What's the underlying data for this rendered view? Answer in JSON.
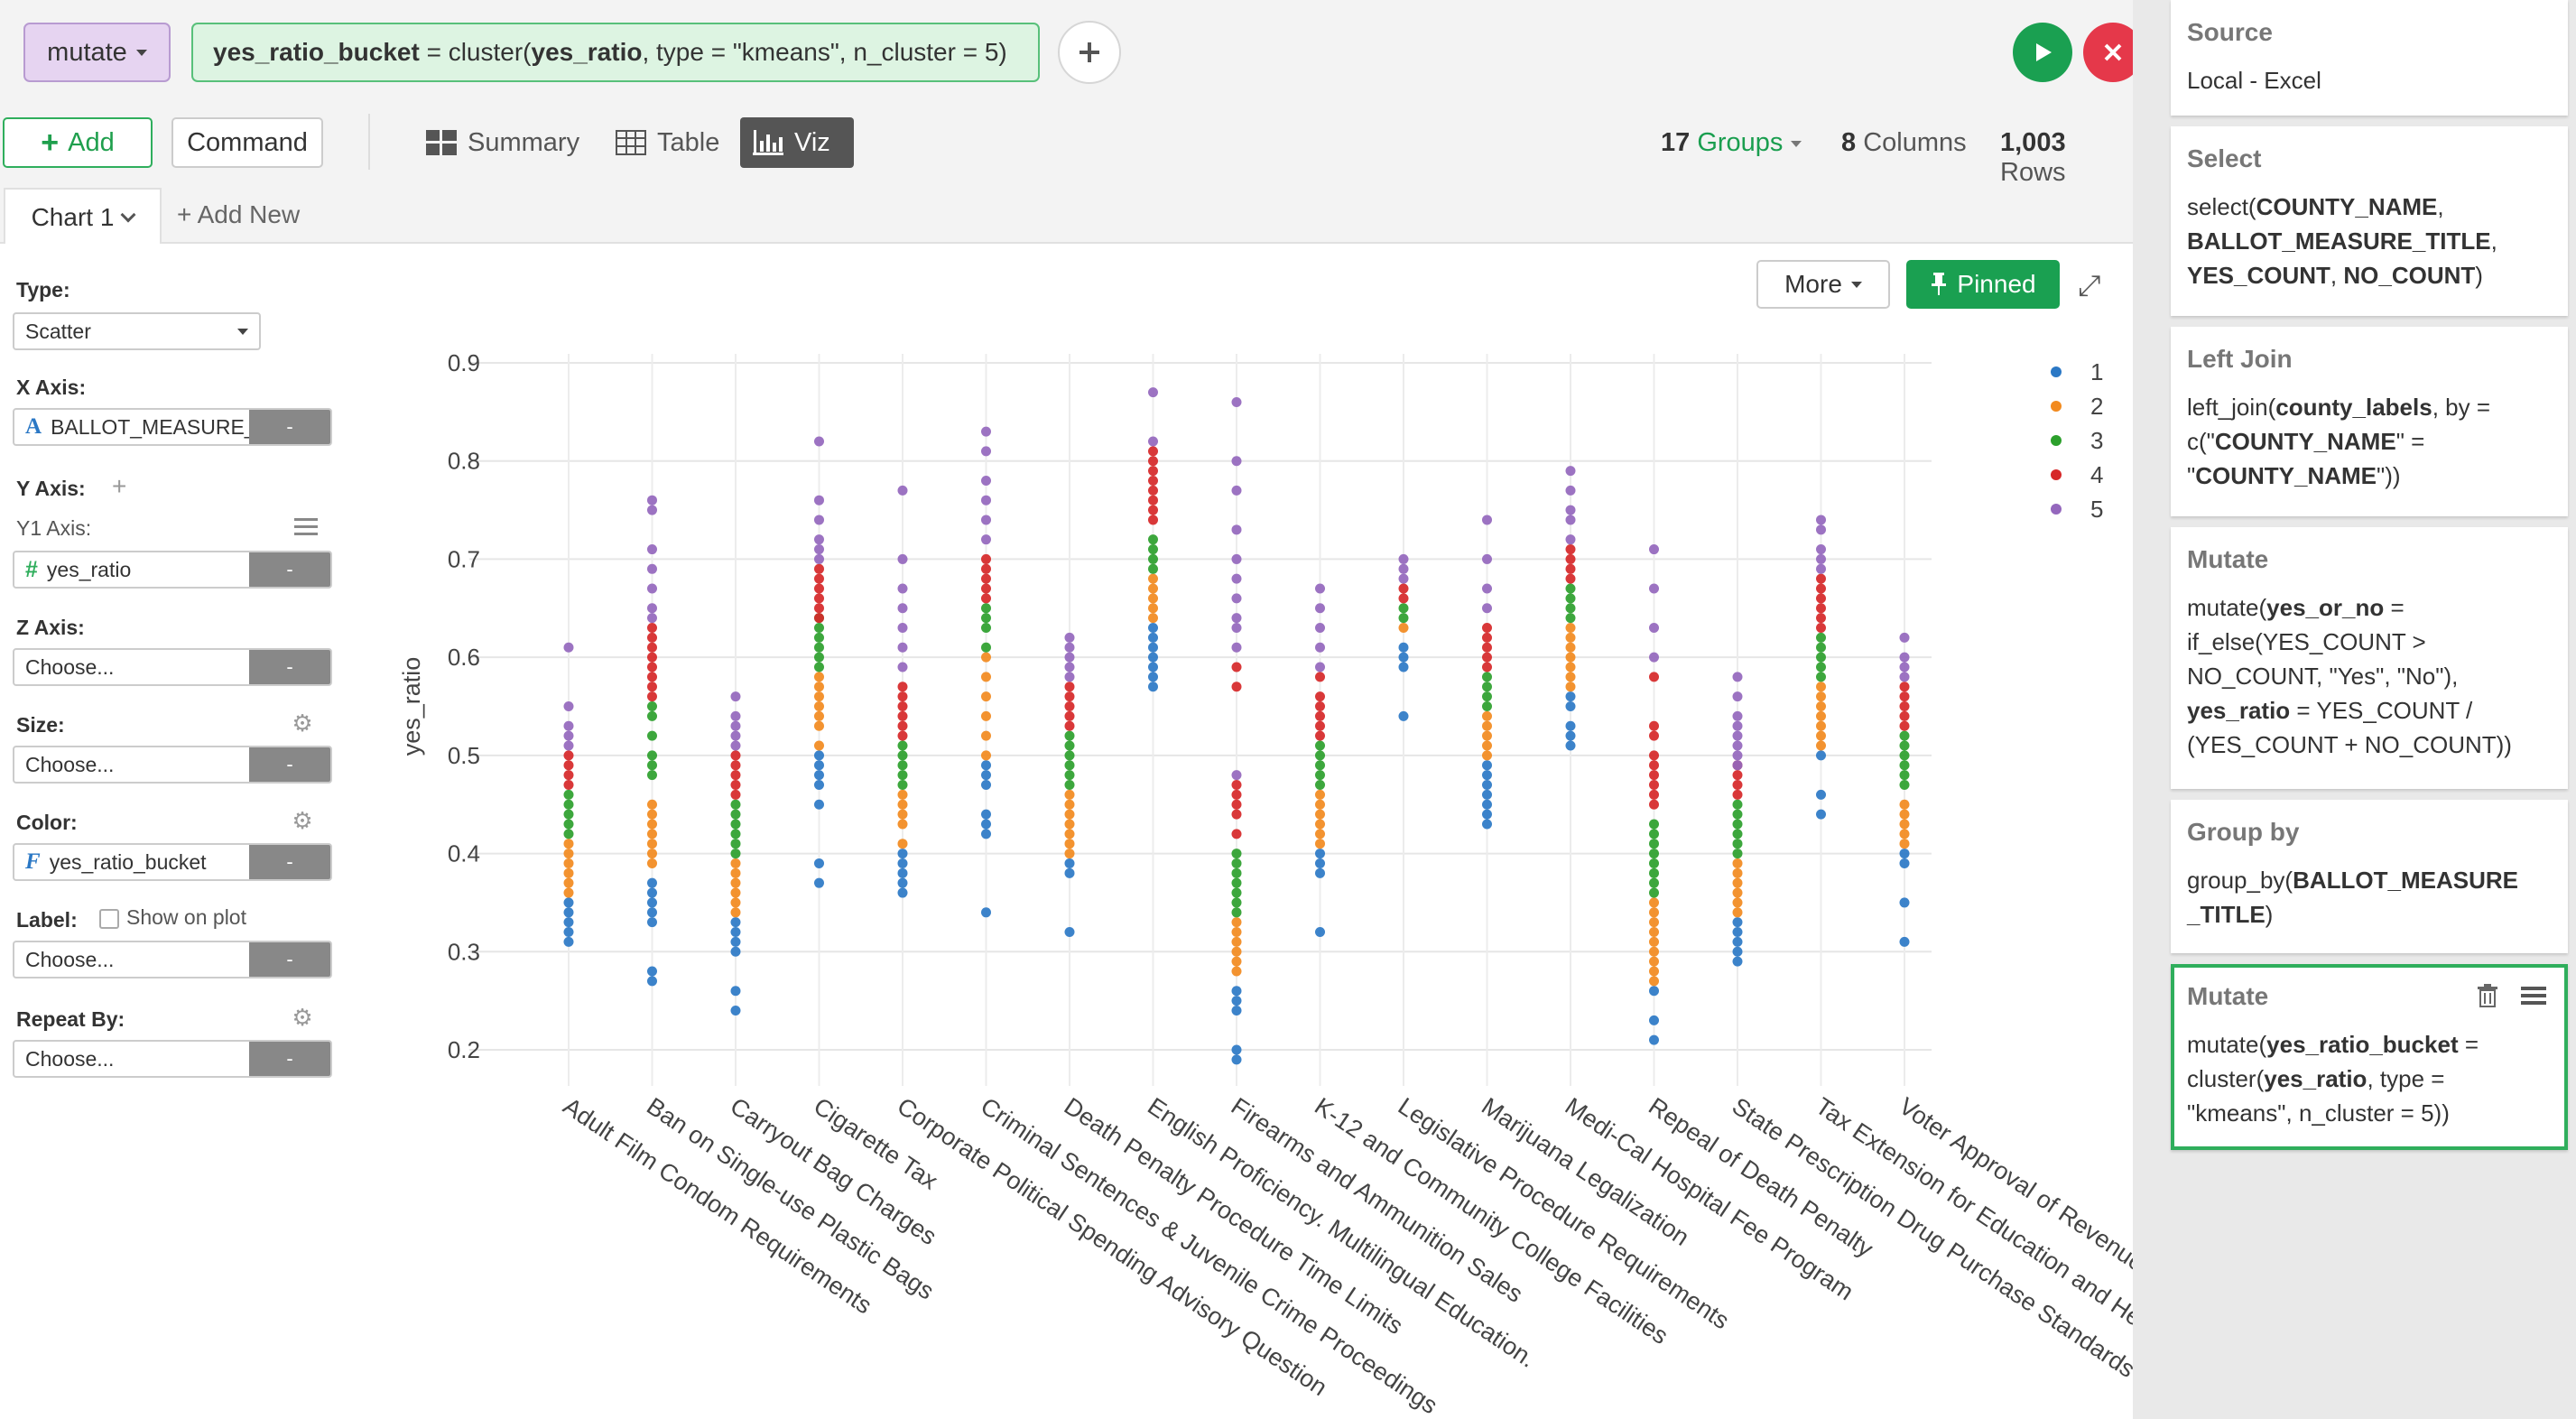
{
  "command_bar": {
    "command": "mutate",
    "expression": {
      "target": "yes_ratio_bucket",
      "part1": " = cluster(",
      "arg": "yes_ratio",
      "part2": ", type = \"kmeans\", n_cluster = 5)"
    },
    "add_icon": "plus-icon",
    "run_icon": "play-icon",
    "cancel_icon": "close-icon"
  },
  "toolbar": {
    "add_label": "Add",
    "command_label": "Command",
    "tabs": [
      {
        "label": "Summary",
        "icon": "summary-icon"
      },
      {
        "label": "Table",
        "icon": "table-icon"
      },
      {
        "label": "Viz",
        "icon": "bar-chart-icon",
        "active": true
      }
    ],
    "groups_count": "17",
    "groups_label": "Groups",
    "columns_count": "8",
    "columns_label": "Columns",
    "rows_count": "1,003",
    "rows_label": "Rows"
  },
  "chart_tabs": {
    "current": "Chart 1",
    "add_new": "+ Add New"
  },
  "settings": {
    "type_label": "Type:",
    "type_value": "Scatter",
    "x_axis_label": "X Axis:",
    "x_axis_value": "BALLOT_MEASURE_TITLE",
    "y_axis_label": "Y Axis:",
    "y1_axis_label": "Y1 Axis:",
    "y1_axis_value": "yes_ratio",
    "z_axis_label": "Z Axis:",
    "z_axis_value": "Choose...",
    "size_label": "Size:",
    "size_value": "Choose...",
    "color_label": "Color:",
    "color_value": "yes_ratio_bucket",
    "label_label": "Label:",
    "show_on_plot": "Show on plot",
    "label_value": "Choose...",
    "repeat_label": "Repeat By:",
    "repeat_value": "Choose...",
    "remove_btn": "-"
  },
  "chart_controls": {
    "more_label": "More",
    "pinned_label": "Pinned"
  },
  "chart_data": {
    "type": "scatter",
    "title": "",
    "xlabel": "",
    "ylabel": "yes_ratio",
    "ylim": [
      0.2,
      0.9
    ],
    "yticks": [
      0.2,
      0.3,
      0.4,
      0.5,
      0.6,
      0.7,
      0.8,
      0.9
    ],
    "grid": true,
    "legend_position": "top-right",
    "categories": [
      "Adult Film Condom Requirements",
      "Ban on Single-use Plastic Bags",
      "Carryout Bag Charges",
      "Cigarette Tax",
      "Corporate Political Spending Advisory Question",
      "Criminal Sentences & Juvenile Crime Proceedings",
      "Death Penalty Procedure Time Limits",
      "English Proficiency. Multilingual Education.",
      "Firearms and Ammunition Sales",
      "K-12 and Community College Facilities",
      "Legislative Procedure Requirements",
      "Marijuana Legalization",
      "Medi-Cal Hospital Fee Program",
      "Repeal of Death Penalty",
      "State Prescription Drug Purchase Standards",
      "Tax Extension for Education and Healthcare",
      "Voter Approval of Revenue Bonds"
    ],
    "series": [
      {
        "name": "1",
        "color": "#2b78c5",
        "values": [
          [
            0.31,
            0.32,
            0.33,
            0.34,
            0.35
          ],
          [
            0.27,
            0.28,
            0.33,
            0.34,
            0.35,
            0.36,
            0.37
          ],
          [
            0.24,
            0.26,
            0.3,
            0.31,
            0.32,
            0.33
          ],
          [
            0.37,
            0.39,
            0.45,
            0.47,
            0.48,
            0.49,
            0.5
          ],
          [
            0.36,
            0.37,
            0.38,
            0.39,
            0.4
          ],
          [
            0.34,
            0.42,
            0.43,
            0.44,
            0.47,
            0.48,
            0.49
          ],
          [
            0.32,
            0.38,
            0.39
          ],
          [
            0.57,
            0.58,
            0.59,
            0.6,
            0.61,
            0.62,
            0.63
          ],
          [
            0.19,
            0.2,
            0.24,
            0.25,
            0.26
          ],
          [
            0.32,
            0.38,
            0.39,
            0.4
          ],
          [
            0.54,
            0.59,
            0.6,
            0.61
          ],
          [
            0.43,
            0.44,
            0.45,
            0.46,
            0.47,
            0.48,
            0.49
          ],
          [
            0.51,
            0.52,
            0.53,
            0.55,
            0.56
          ],
          [
            0.21,
            0.23,
            0.26
          ],
          [
            0.29,
            0.3,
            0.31,
            0.32,
            0.33
          ],
          [
            0.44,
            0.46,
            0.5
          ],
          [
            0.31,
            0.35,
            0.39,
            0.4
          ]
        ]
      },
      {
        "name": "2",
        "color": "#f28a1e",
        "values": [
          [
            0.36,
            0.37,
            0.38,
            0.39,
            0.4,
            0.41
          ],
          [
            0.39,
            0.4,
            0.41,
            0.42,
            0.43,
            0.44,
            0.45
          ],
          [
            0.34,
            0.35,
            0.36,
            0.37,
            0.38,
            0.39
          ],
          [
            0.51,
            0.53,
            0.54,
            0.55,
            0.56,
            0.57,
            0.58
          ],
          [
            0.41,
            0.43,
            0.44,
            0.45,
            0.46
          ],
          [
            0.5,
            0.52,
            0.54,
            0.56,
            0.58,
            0.6
          ],
          [
            0.4,
            0.41,
            0.42,
            0.43,
            0.44,
            0.45,
            0.46
          ],
          [
            0.64,
            0.65,
            0.66,
            0.67,
            0.68
          ],
          [
            0.28,
            0.29,
            0.3,
            0.31,
            0.32,
            0.33
          ],
          [
            0.41,
            0.42,
            0.43,
            0.44,
            0.45,
            0.46
          ],
          [
            0.63
          ],
          [
            0.5,
            0.51,
            0.52,
            0.53,
            0.54
          ],
          [
            0.57,
            0.58,
            0.59,
            0.6,
            0.61,
            0.62,
            0.63
          ],
          [
            0.27,
            0.28,
            0.29,
            0.3,
            0.31,
            0.32,
            0.33,
            0.34,
            0.35
          ],
          [
            0.34,
            0.35,
            0.36,
            0.37,
            0.38,
            0.39
          ],
          [
            0.51,
            0.52,
            0.53,
            0.54,
            0.55,
            0.56,
            0.57
          ],
          [
            0.41,
            0.42,
            0.43,
            0.44,
            0.45
          ]
        ]
      },
      {
        "name": "3",
        "color": "#2ca02c",
        "values": [
          [
            0.42,
            0.43,
            0.44,
            0.45,
            0.46
          ],
          [
            0.48,
            0.49,
            0.5,
            0.52,
            0.54,
            0.55
          ],
          [
            0.4,
            0.41,
            0.42,
            0.43,
            0.44,
            0.45
          ],
          [
            0.59,
            0.6,
            0.61,
            0.62,
            0.63,
            0.64
          ],
          [
            0.47,
            0.48,
            0.49,
            0.5,
            0.51
          ],
          [
            0.61,
            0.63,
            0.64,
            0.65
          ],
          [
            0.47,
            0.48,
            0.49,
            0.5,
            0.51,
            0.52
          ],
          [
            0.69,
            0.7,
            0.71,
            0.72
          ],
          [
            0.34,
            0.35,
            0.36,
            0.37,
            0.38,
            0.39,
            0.4
          ],
          [
            0.47,
            0.48,
            0.49,
            0.5,
            0.51
          ],
          [
            0.64,
            0.65
          ],
          [
            0.55,
            0.56,
            0.57,
            0.58
          ],
          [
            0.64,
            0.65,
            0.66,
            0.67
          ],
          [
            0.36,
            0.37,
            0.38,
            0.39,
            0.4,
            0.41,
            0.42,
            0.43
          ],
          [
            0.4,
            0.41,
            0.42,
            0.43,
            0.44,
            0.45
          ],
          [
            0.58,
            0.59,
            0.6,
            0.61,
            0.62
          ],
          [
            0.47,
            0.48,
            0.49,
            0.5,
            0.51,
            0.52
          ]
        ]
      },
      {
        "name": "4",
        "color": "#d62728",
        "values": [
          [
            0.47,
            0.48,
            0.49,
            0.5
          ],
          [
            0.56,
            0.57,
            0.58,
            0.59,
            0.6,
            0.61,
            0.62,
            0.63
          ],
          [
            0.46,
            0.47,
            0.48,
            0.49,
            0.5
          ],
          [
            0.64,
            0.65,
            0.66,
            0.67,
            0.68,
            0.69
          ],
          [
            0.52,
            0.53,
            0.54,
            0.55,
            0.56,
            0.57
          ],
          [
            0.66,
            0.67,
            0.68,
            0.69,
            0.7
          ],
          [
            0.53,
            0.54,
            0.55,
            0.56,
            0.57
          ],
          [
            0.74,
            0.75,
            0.76,
            0.77,
            0.78,
            0.79,
            0.8,
            0.81
          ],
          [
            0.42,
            0.44,
            0.45,
            0.46,
            0.47,
            0.57,
            0.59
          ],
          [
            0.52,
            0.53,
            0.54,
            0.55,
            0.56,
            0.58
          ],
          [
            0.66,
            0.67
          ],
          [
            0.59,
            0.6,
            0.61,
            0.62,
            0.63
          ],
          [
            0.68,
            0.69,
            0.7,
            0.71
          ],
          [
            0.45,
            0.46,
            0.47,
            0.48,
            0.49,
            0.5,
            0.52,
            0.53,
            0.58
          ],
          [
            0.46,
            0.47,
            0.48,
            0.49
          ],
          [
            0.63,
            0.64,
            0.65,
            0.66,
            0.67,
            0.68
          ],
          [
            0.53,
            0.54,
            0.55,
            0.56,
            0.57
          ]
        ]
      },
      {
        "name": "5",
        "color": "#9467bd",
        "values": [
          [
            0.51,
            0.52,
            0.53,
            0.55,
            0.61
          ],
          [
            0.64,
            0.65,
            0.67,
            0.69,
            0.71,
            0.75,
            0.76
          ],
          [
            0.51,
            0.52,
            0.53,
            0.54,
            0.56
          ],
          [
            0.7,
            0.71,
            0.72,
            0.74,
            0.76,
            0.82
          ],
          [
            0.59,
            0.61,
            0.63,
            0.65,
            0.67,
            0.7,
            0.77
          ],
          [
            0.72,
            0.74,
            0.76,
            0.78,
            0.81,
            0.83
          ],
          [
            0.58,
            0.59,
            0.6,
            0.61,
            0.62
          ],
          [
            0.82,
            0.87
          ],
          [
            0.48,
            0.61,
            0.63,
            0.64,
            0.66,
            0.68,
            0.7,
            0.73,
            0.77,
            0.8,
            0.86
          ],
          [
            0.59,
            0.61,
            0.63,
            0.65,
            0.67
          ],
          [
            0.68,
            0.69,
            0.7
          ],
          [
            0.65,
            0.67,
            0.7,
            0.74
          ],
          [
            0.72,
            0.74,
            0.75,
            0.77,
            0.79
          ],
          [
            0.6,
            0.63,
            0.67,
            0.71
          ],
          [
            0.49,
            0.5,
            0.51,
            0.52,
            0.53,
            0.54,
            0.56,
            0.58
          ],
          [
            0.69,
            0.7,
            0.71,
            0.73,
            0.74
          ],
          [
            0.58,
            0.59,
            0.6,
            0.62
          ]
        ]
      }
    ]
  },
  "pipeline": {
    "steps": [
      {
        "title": "Source",
        "lines": [
          "Local - Excel"
        ]
      },
      {
        "title": "Select",
        "lines": [
          "select(COUNTY_NAME,",
          "BALLOT_MEASURE_TITLE,",
          "YES_COUNT, NO_COUNT)"
        ]
      },
      {
        "title": "Left Join",
        "lines": [
          "left_join(county_labels, by =",
          "c(\"COUNTY_NAME\" =",
          "\"COUNTY_NAME\"))"
        ]
      },
      {
        "title": "Mutate",
        "lines": [
          "mutate(yes_or_no =",
          "if_else(YES_COUNT >",
          "NO_COUNT, \"Yes\", \"No\"),",
          "yes_ratio = YES_COUNT /",
          "(YES_COUNT + NO_COUNT))"
        ]
      },
      {
        "title": "Group by",
        "lines": [
          "group_by(BALLOT_MEASURE",
          "_TITLE)"
        ]
      },
      {
        "title": "Mutate",
        "lines": [
          "mutate(yes_ratio_bucket =",
          "cluster(yes_ratio, type =",
          "\"kmeans\", n_cluster = 5))"
        ],
        "active": true
      }
    ]
  }
}
